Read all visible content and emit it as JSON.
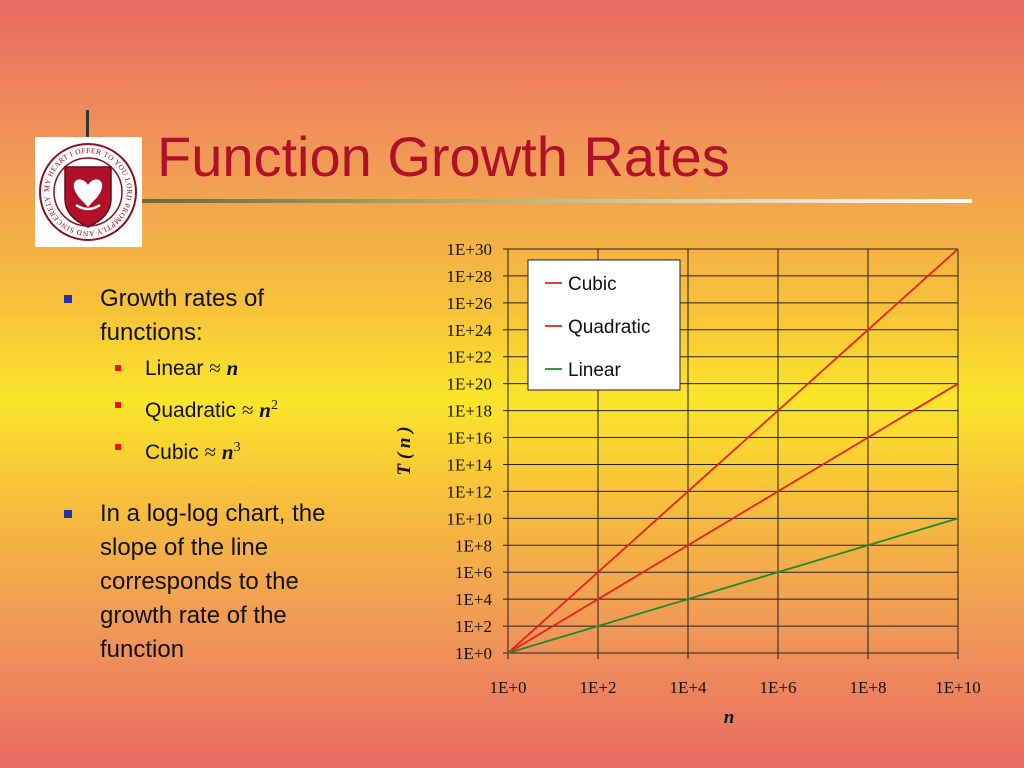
{
  "slide": {
    "title": "Function Growth Rates"
  },
  "bullets": {
    "b1_line1": "Growth rates of",
    "b1_line2": "functions:",
    "sub": [
      {
        "label": "Linear",
        "approx": "≈",
        "var": "n",
        "exp": ""
      },
      {
        "label": "Quadratic",
        "approx": "≈",
        "var": "n",
        "exp": "2"
      },
      {
        "label": "Cubic",
        "approx": "≈",
        "var": "n",
        "exp": "3"
      }
    ],
    "b2_lines": [
      "In a log-log chart, the",
      "slope of the line",
      "corresponds to the",
      "growth rate of the",
      "function"
    ]
  },
  "logo": {
    "ring_text": "MY HEART I OFFER TO YOU LORD PROMPTLY AND SINCERELY"
  },
  "chart_data": {
    "type": "line",
    "scale": "log-log",
    "xlabel": "n",
    "ylabel": "T ( n )",
    "x_ticks": [
      "1E+0",
      "1E+2",
      "1E+4",
      "1E+6",
      "1E+8",
      "1E+10"
    ],
    "y_ticks": [
      "1E+0",
      "1E+2",
      "1E+4",
      "1E+6",
      "1E+8",
      "1E+10",
      "1E+12",
      "1E+14",
      "1E+16",
      "1E+18",
      "1E+20",
      "1E+22",
      "1E+24",
      "1E+26",
      "1E+28",
      "1E+30"
    ],
    "xlim": [
      1,
      10000000000.0
    ],
    "ylim": [
      1,
      1e+30
    ],
    "grid": true,
    "legend_position": "top-left inside plot",
    "series": [
      {
        "name": "Cubic",
        "color": "#e8201a",
        "x": [
          1,
          10000000000.0
        ],
        "y": [
          1,
          1e+30
        ]
      },
      {
        "name": "Quadratic",
        "color": "#e8201a",
        "x": [
          1,
          10000000000.0
        ],
        "y": [
          1,
          1e+20
        ]
      },
      {
        "name": "Linear",
        "color": "#1f8a2a",
        "x": [
          1,
          10000000000.0
        ],
        "y": [
          1,
          10000000000.0
        ]
      }
    ]
  },
  "colors": {
    "title": "#b0102a",
    "bullet_main": "#2233aa",
    "bullet_sub": "#ee1111",
    "cubic": "#e8201a",
    "quadratic": "#e8201a",
    "linear": "#1f8a2a"
  }
}
